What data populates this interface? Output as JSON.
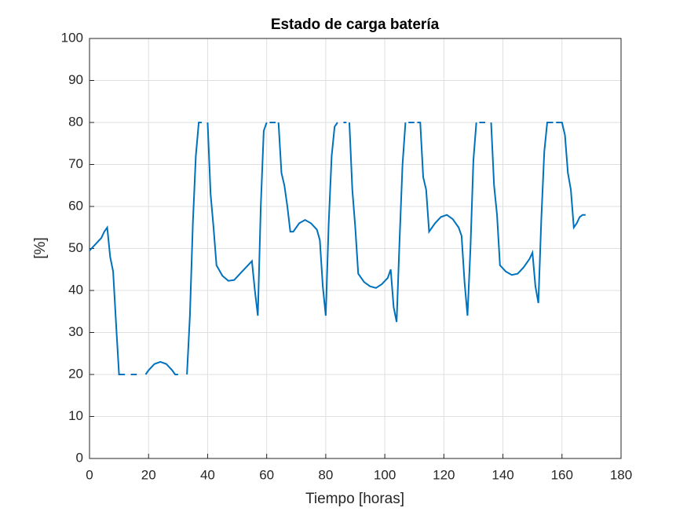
{
  "chart_data": {
    "type": "line",
    "title": "Estado de carga batería",
    "xlabel": "Tiempo [horas]",
    "ylabel": "[%]",
    "x": [
      0,
      2,
      4,
      5,
      6,
      7,
      8,
      9,
      10,
      12,
      13,
      14,
      16,
      17.5,
      19,
      20,
      22,
      24,
      26,
      28,
      29,
      30,
      31.5,
      33,
      34,
      35,
      36,
      37,
      38,
      39,
      40,
      41,
      42,
      43,
      45,
      47,
      49,
      51,
      53,
      55,
      56,
      57,
      58,
      59,
      60,
      60.5,
      61,
      63,
      63.5,
      64,
      65,
      66,
      67,
      68,
      69,
      71,
      73,
      75,
      77,
      78,
      79,
      80,
      81,
      82,
      83,
      84,
      85,
      86,
      87,
      87.5,
      88,
      89,
      90,
      91,
      93,
      95,
      97,
      99,
      101,
      102,
      103,
      104,
      105,
      106,
      107,
      107.5,
      108,
      110,
      110.5,
      111,
      112,
      113,
      114,
      115,
      117,
      119,
      121,
      123,
      125,
      126,
      127,
      128,
      129,
      130,
      131,
      131.5,
      132,
      134,
      135,
      136,
      137,
      138,
      139,
      141,
      143,
      145,
      147,
      149,
      150,
      151,
      152,
      153,
      154,
      155,
      157,
      157.5,
      158,
      160,
      161,
      162,
      163,
      164,
      165,
      166,
      167,
      168
    ],
    "series": [
      {
        "color": "#0072bd",
        "values": [
          49.5,
          51,
          52.5,
          54,
          55,
          48,
          44.5,
          32,
          20,
          20,
          null,
          20,
          20,
          null,
          20,
          21,
          22.5,
          23,
          22.5,
          21,
          20,
          20,
          null,
          20,
          34,
          56,
          72,
          80,
          80,
          null,
          80,
          63,
          55,
          46,
          43.5,
          42.3,
          42.5,
          44,
          45.5,
          47,
          40,
          34,
          60,
          78,
          80,
          null,
          80,
          80,
          null,
          80,
          68,
          65,
          60,
          54,
          54,
          56,
          56.8,
          56,
          54.5,
          52,
          41,
          34,
          56,
          72,
          79,
          80,
          null,
          80,
          80,
          null,
          80,
          64,
          55,
          44,
          42,
          41,
          40.6,
          41.5,
          43,
          45,
          36,
          32.5,
          52,
          70,
          80,
          null,
          80,
          80,
          null,
          80,
          80,
          67,
          64,
          54,
          56,
          57.5,
          58,
          57,
          55,
          53,
          42,
          34,
          50,
          71,
          80,
          null,
          80,
          80,
          null,
          80,
          65,
          58,
          46,
          44.5,
          43.7,
          44,
          45.5,
          47.5,
          49,
          41,
          37,
          57,
          73,
          80,
          80,
          null,
          80,
          80,
          77,
          68,
          64,
          55,
          56,
          57.5,
          58,
          58
        ]
      }
    ],
    "xlim": [
      0,
      180
    ],
    "xticks": [
      0,
      20,
      40,
      60,
      80,
      100,
      120,
      140,
      160,
      180
    ],
    "ylim": [
      0,
      100
    ],
    "yticks": [
      0,
      10,
      20,
      30,
      40,
      50,
      60,
      70,
      80,
      90,
      100
    ],
    "grid": true
  }
}
